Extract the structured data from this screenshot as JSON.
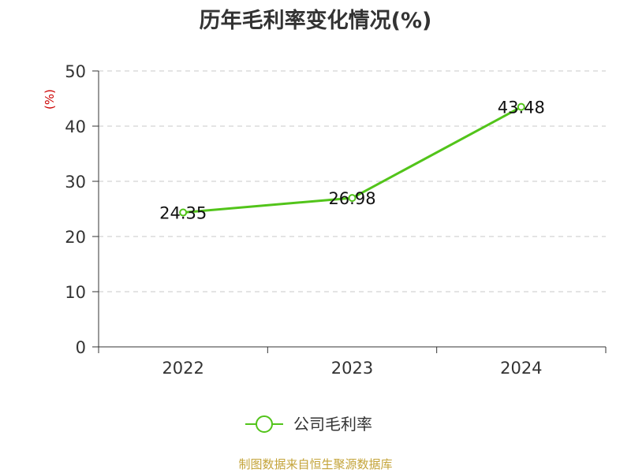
{
  "chart_data": {
    "type": "line",
    "title": "历年毛利率变化情况(%)",
    "ylabel": "(%)",
    "xlabel": "",
    "categories": [
      "2022",
      "2023",
      "2024"
    ],
    "series": [
      {
        "name": "公司毛利率",
        "values": [
          24.35,
          26.98,
          43.48
        ],
        "color": "#52c41a"
      }
    ],
    "ylim": [
      0,
      50
    ],
    "yticks": [
      0,
      10,
      20,
      30,
      40,
      50
    ],
    "grid": true,
    "legend_position": "bottom-center"
  },
  "source": "制图数据来自恒生聚源数据库",
  "colors": {
    "axis": "#333333",
    "grid": "#c8c8c8",
    "ylabel": "#cc0000",
    "source": "#c4a43a"
  }
}
